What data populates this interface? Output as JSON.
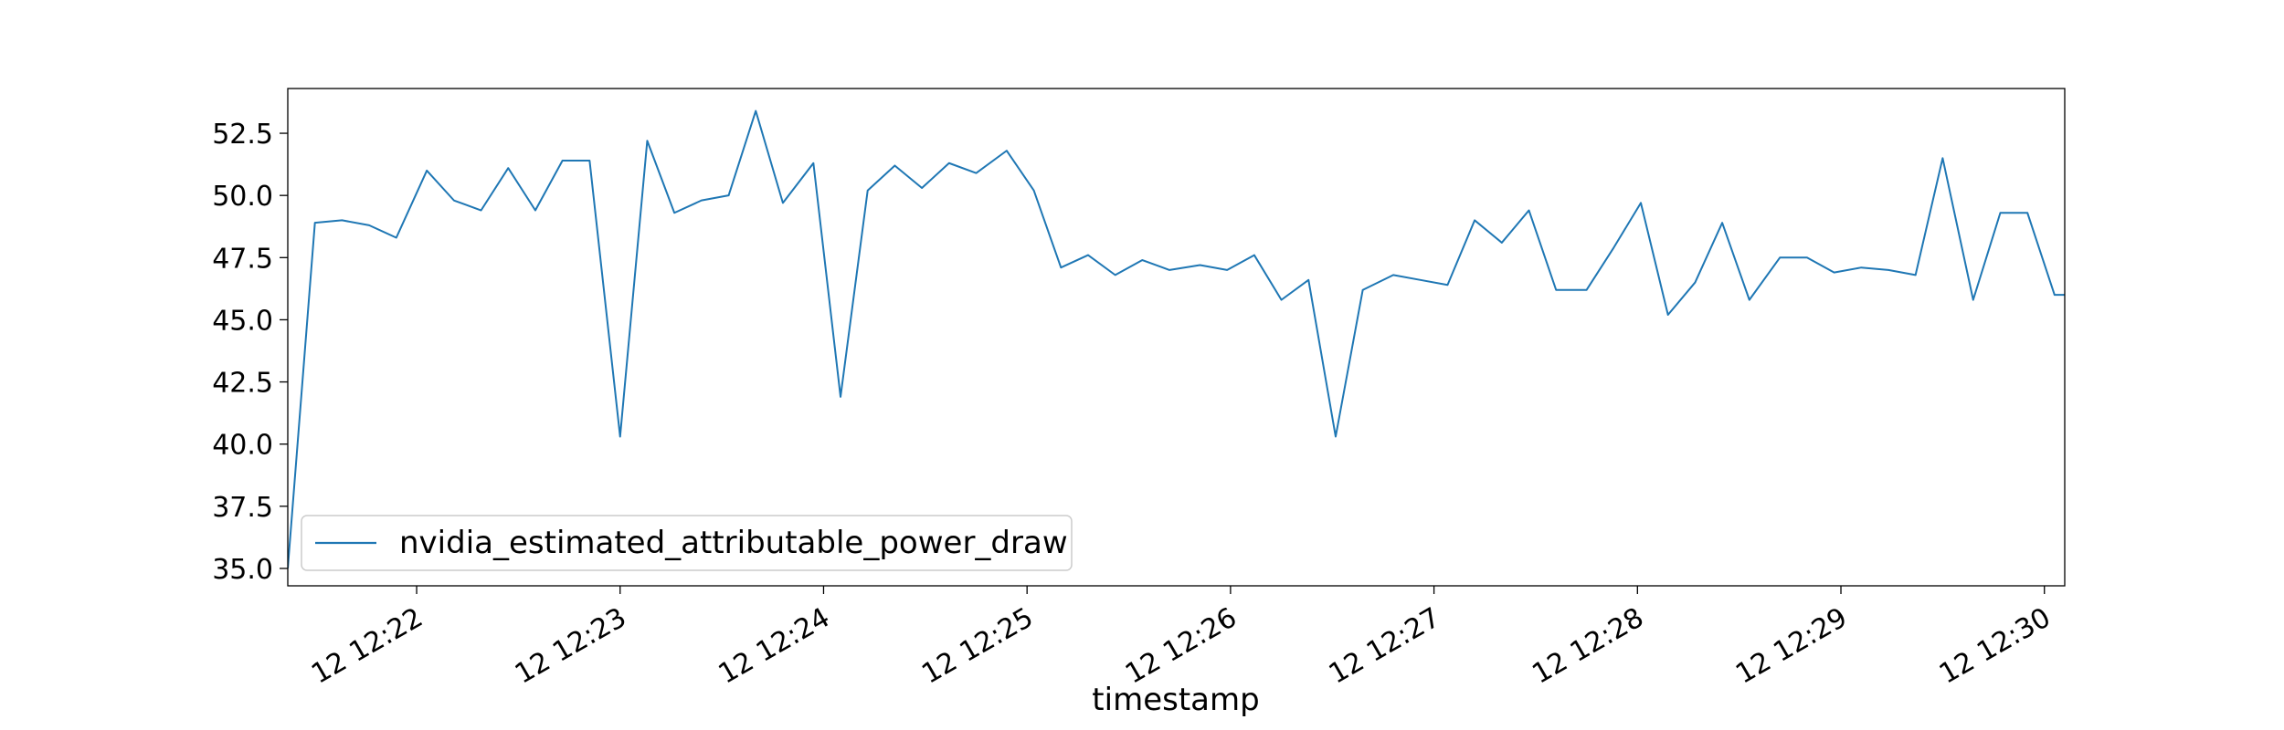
{
  "chart_data": {
    "type": "line",
    "title": "",
    "xlabel": "timestamp",
    "ylabel": "",
    "grid": false,
    "legend": "lower-left",
    "colors": {
      "series": "#1f77b4",
      "axes": "#000000",
      "background": "#ffffff"
    },
    "ylim": [
      34.3,
      54.3
    ],
    "xlim": [
      "12 12:21:22",
      "12 12:30:06"
    ],
    "y_ticks": [
      35.0,
      37.5,
      40.0,
      42.5,
      45.0,
      47.5,
      50.0,
      52.5
    ],
    "y_tick_labels": [
      "35.0",
      "37.5",
      "40.0",
      "42.5",
      "45.0",
      "47.5",
      "50.0",
      "52.5"
    ],
    "x_ticks": [
      "12 12:22:00",
      "12 12:23:00",
      "12 12:24:00",
      "12 12:25:00",
      "12 12:26:00",
      "12 12:27:00",
      "12 12:28:00",
      "12 12:29:00",
      "12 12:30:00"
    ],
    "x_tick_labels": [
      "12 12:22",
      "12 12:23",
      "12 12:24",
      "12 12:25",
      "12 12:26",
      "12 12:27",
      "12 12:28",
      "12 12:29",
      "12 12:30"
    ],
    "series": [
      {
        "name": "nvidia_estimated_attributable_power_draw",
        "x": [
          "12 12:21:22",
          "12 12:21:30",
          "12 12:21:38",
          "12 12:21:46",
          "12 12:21:54",
          "12 12:22:03",
          "12 12:22:11",
          "12 12:22:19",
          "12 12:22:27",
          "12 12:22:35",
          "12 12:22:43",
          "12 12:22:51",
          "12 12:23:00",
          "12 12:23:08",
          "12 12:23:16",
          "12 12:23:24",
          "12 12:23:32",
          "12 12:23:40",
          "12 12:23:48",
          "12 12:23:57",
          "12 12:24:05",
          "12 12:24:13",
          "12 12:24:21",
          "12 12:24:29",
          "12 12:24:37",
          "12 12:24:45",
          "12 12:24:54",
          "12 12:25:02",
          "12 12:25:10",
          "12 12:25:18",
          "12 12:25:26",
          "12 12:25:34",
          "12 12:25:42",
          "12 12:25:51",
          "12 12:25:59",
          "12 12:26:07",
          "12 12:26:15",
          "12 12:26:23",
          "12 12:26:31",
          "12 12:26:39",
          "12 12:26:48",
          "12 12:26:56",
          "12 12:27:04",
          "12 12:27:12",
          "12 12:27:20",
          "12 12:27:28",
          "12 12:27:36",
          "12 12:27:45",
          "12 12:27:53",
          "12 12:28:01",
          "12 12:28:09",
          "12 12:28:17",
          "12 12:28:25",
          "12 12:28:33",
          "12 12:28:42",
          "12 12:28:50",
          "12 12:28:58",
          "12 12:29:06",
          "12 12:29:14",
          "12 12:29:22",
          "12 12:29:30",
          "12 12:29:39",
          "12 12:29:47",
          "12 12:29:55",
          "12 12:30:03",
          "12 12:30:06"
        ],
        "y": [
          35.0,
          48.9,
          49.0,
          48.8,
          48.3,
          51.0,
          49.8,
          49.4,
          51.1,
          49.4,
          51.4,
          51.4,
          40.3,
          52.2,
          49.3,
          49.8,
          50.0,
          53.4,
          49.7,
          51.3,
          41.9,
          50.2,
          51.2,
          50.3,
          51.3,
          50.9,
          51.8,
          50.2,
          47.1,
          47.6,
          46.8,
          47.4,
          47.0,
          47.2,
          47.0,
          47.6,
          45.8,
          46.6,
          40.3,
          46.2,
          46.8,
          46.6,
          46.4,
          49.0,
          48.1,
          49.4,
          46.2,
          46.2,
          47.9,
          49.7,
          45.2,
          46.5,
          48.9,
          45.8,
          47.5,
          47.5,
          46.9,
          47.1,
          47.0,
          46.8,
          51.5,
          45.8,
          49.3,
          49.3,
          46.0,
          46.0
        ]
      }
    ]
  }
}
